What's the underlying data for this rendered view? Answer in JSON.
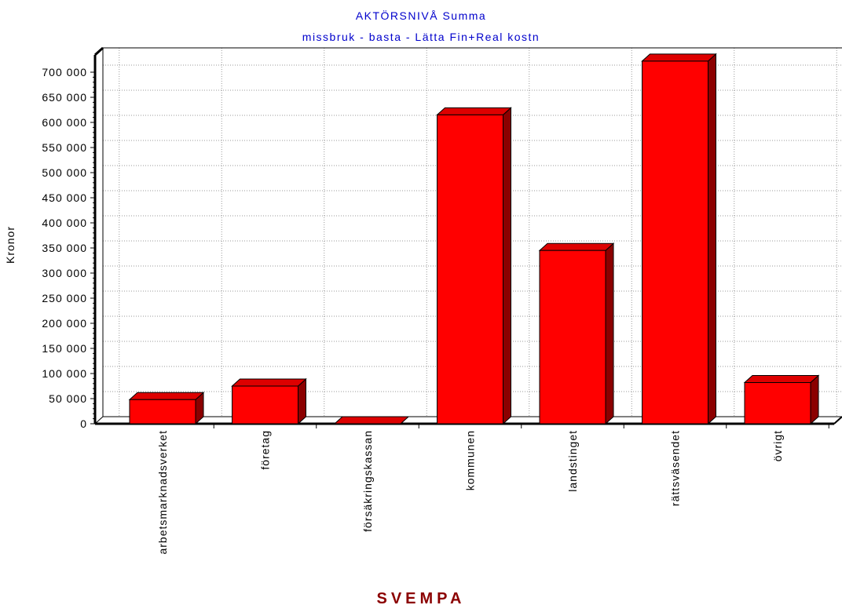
{
  "chart_data": {
    "type": "bar",
    "title": "AKTÖRSNIVÅ  Summa",
    "subtitle": "missbruk - basta - Lätta Fin+Real kostn",
    "xlabel": "SVEMPA",
    "ylabel": "Kronor",
    "categories": [
      "arbetsmarknadsverket",
      "företag",
      "försäkringskassan",
      "kommunen",
      "landstinget",
      "rättsväsendet",
      "övrigt"
    ],
    "values": [
      48000,
      75000,
      0,
      615000,
      345000,
      722000,
      82000
    ],
    "ylim": [
      0,
      700000
    ],
    "yticks": [
      0,
      50000,
      100000,
      150000,
      200000,
      250000,
      300000,
      350000,
      400000,
      450000,
      500000,
      550000,
      600000,
      650000,
      700000
    ],
    "ytick_labels": [
      "0",
      "50 000",
      "100 000",
      "150 000",
      "200 000",
      "250 000",
      "300 000",
      "350 000",
      "400 000",
      "450 000",
      "500 000",
      "550 000",
      "600 000",
      "650 000",
      "700 000"
    ],
    "grid": true,
    "colors": {
      "bar_front": "#ff0000",
      "bar_top": "#dd0000",
      "bar_side": "#8b0000",
      "title": "#0000cc",
      "xlabel": "#8b0000",
      "grid": "#999999",
      "axis": "#000000"
    }
  }
}
